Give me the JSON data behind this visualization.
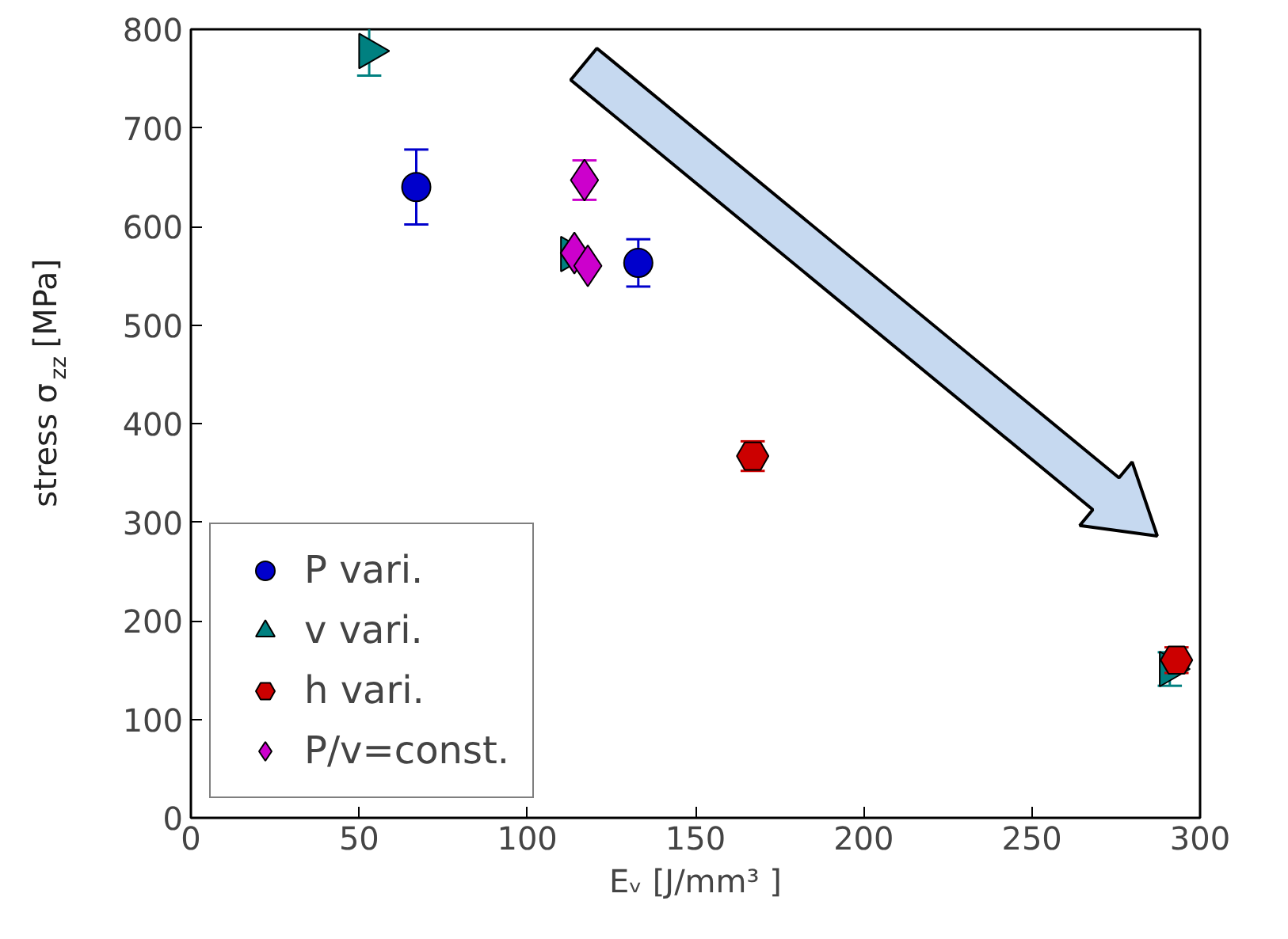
{
  "chart_data": {
    "type": "scatter",
    "xlabel": "Eᵥ [J/mm³ ]",
    "ylabel": "stress σ$_{zz}$ [MPa]",
    "xlim": [
      0,
      300
    ],
    "ylim": [
      0,
      800
    ],
    "xticks": [
      0,
      50,
      100,
      150,
      200,
      250,
      300
    ],
    "yticks": [
      0,
      100,
      200,
      300,
      400,
      500,
      600,
      700,
      800
    ],
    "grid": false,
    "legend": "bottom left",
    "series": [
      {
        "name": "P vari.",
        "color": "#0000cc",
        "marker": "circle",
        "x": [
          67,
          133
        ],
        "values": [
          640,
          563
        ],
        "errors": [
          38,
          24
        ]
      },
      {
        "name": "v vari.",
        "color": "#008080",
        "marker": "triangle",
        "x": [
          53,
          113,
          291
        ],
        "values": [
          778,
          572,
          151
        ],
        "errors": [
          25,
          null,
          17
        ]
      },
      {
        "name": "h vari.",
        "color": "#cc0000",
        "x": [
          167,
          293
        ],
        "values": [
          367,
          160
        ],
        "errors": [
          15,
          13
        ]
      },
      {
        "name": "P/v=const.",
        "color": "#cc00cc",
        "marker": "diamond",
        "x": [
          117,
          114,
          118
        ],
        "values": [
          647,
          573,
          560
        ],
        "errors": [
          20,
          null,
          null
        ]
      }
    ]
  }
}
